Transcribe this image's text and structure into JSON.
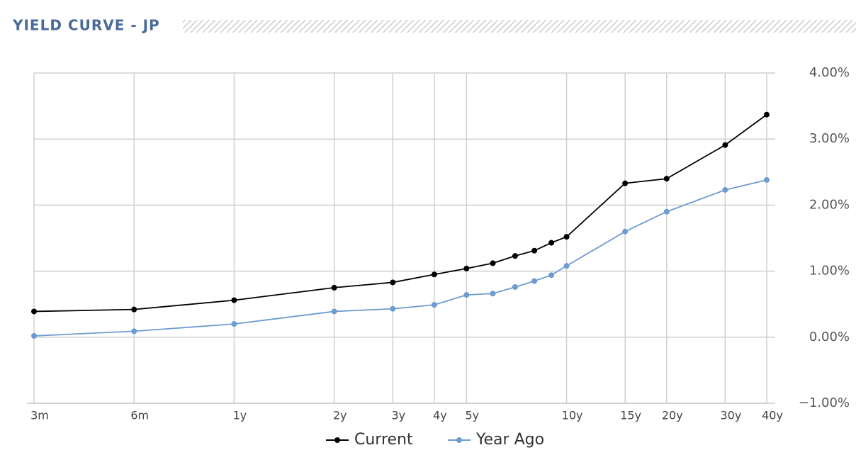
{
  "chart_data": {
    "type": "line",
    "title": "YIELD CURVE - JP",
    "x": [
      0.25,
      0.5,
      1,
      2,
      3,
      4,
      5,
      6,
      7,
      8,
      9,
      10,
      15,
      20,
      30,
      40
    ],
    "xscale": "log",
    "xlim": [
      0.25,
      40
    ],
    "xticks": [
      {
        "value": 0.25,
        "label": "3m"
      },
      {
        "value": 0.5,
        "label": "6m"
      },
      {
        "value": 1,
        "label": "1y"
      },
      {
        "value": 2,
        "label": "2y"
      },
      {
        "value": 3,
        "label": "3y"
      },
      {
        "value": 4,
        "label": "4y"
      },
      {
        "value": 5,
        "label": "5y"
      },
      {
        "value": 10,
        "label": "10y"
      },
      {
        "value": 15,
        "label": "15y"
      },
      {
        "value": 20,
        "label": "20y"
      },
      {
        "value": 30,
        "label": "30y"
      },
      {
        "value": 40,
        "label": "40y"
      }
    ],
    "ylim": [
      -1,
      4
    ],
    "yticks": [
      {
        "value": -1,
        "label": "−1.00%"
      },
      {
        "value": 0,
        "label": "0.00%"
      },
      {
        "value": 1,
        "label": "1.00%"
      },
      {
        "value": 2,
        "label": "2.00%"
      },
      {
        "value": 3,
        "label": "3.00%"
      },
      {
        "value": 4,
        "label": "4.00%"
      }
    ],
    "grid": true,
    "legend": "bottom",
    "series": [
      {
        "name": "Current",
        "color": "#000000",
        "values": [
          0.39,
          0.42,
          0.56,
          0.75,
          0.83,
          0.95,
          1.04,
          1.12,
          1.23,
          1.31,
          1.43,
          1.52,
          2.33,
          2.4,
          2.91,
          3.37
        ]
      },
      {
        "name": "Year Ago",
        "color": "#6e9bd1",
        "values": [
          0.02,
          0.09,
          0.2,
          0.39,
          0.43,
          0.49,
          0.64,
          0.66,
          0.76,
          0.85,
          0.94,
          1.08,
          1.6,
          1.9,
          2.23,
          2.38
        ]
      }
    ]
  }
}
